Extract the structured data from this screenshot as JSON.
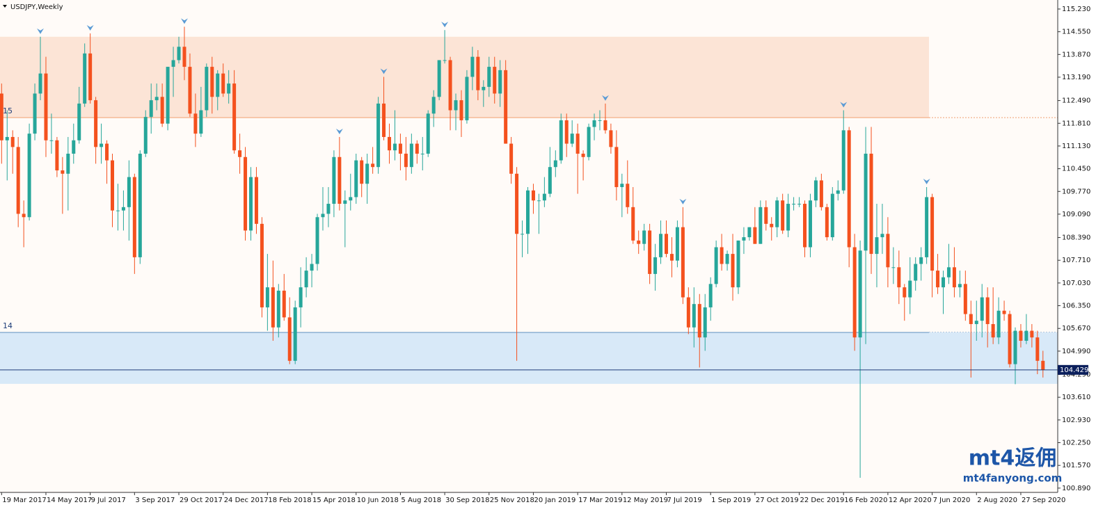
{
  "chart_data": {
    "type": "candlestick",
    "title": "USDJPY,Weekly",
    "bull_color": "#26a69a",
    "bear_color": "#f4511e",
    "ylim": [
      100.72,
      115.5
    ],
    "yticks": [
      {
        "value": 115.23,
        "label": "115.230"
      },
      {
        "value": 114.55,
        "label": "114.550"
      },
      {
        "value": 113.87,
        "label": "113.870"
      },
      {
        "value": 113.19,
        "label": "113.190"
      },
      {
        "value": 112.49,
        "label": "112.490"
      },
      {
        "value": 111.81,
        "label": "111.810"
      },
      {
        "value": 111.13,
        "label": "111.130"
      },
      {
        "value": 110.45,
        "label": "110.450"
      },
      {
        "value": 109.77,
        "label": "109.770"
      },
      {
        "value": 109.09,
        "label": "109.090"
      },
      {
        "value": 108.39,
        "label": "108.390"
      },
      {
        "value": 107.71,
        "label": "107.710"
      },
      {
        "value": 107.03,
        "label": "107.030"
      },
      {
        "value": 106.35,
        "label": "106.350"
      },
      {
        "value": 105.67,
        "label": "105.670"
      },
      {
        "value": 104.99,
        "label": "104.990"
      },
      {
        "value": 104.29,
        "label": "104.290"
      },
      {
        "value": 103.61,
        "label": "103.610"
      },
      {
        "value": 102.93,
        "label": "102.930"
      },
      {
        "value": 102.25,
        "label": "102.250"
      },
      {
        "value": 101.57,
        "label": "101.570"
      },
      {
        "value": 100.89,
        "label": "100.890"
      }
    ],
    "zones": [
      {
        "label": "15",
        "from": 111.98,
        "to": 114.4,
        "color": "#fce4d6",
        "line_color": "#f0a070"
      },
      {
        "label": "14",
        "from": 104.01,
        "to": 105.55,
        "color": "#d8e9f8",
        "line_color": "#5b8fc0"
      }
    ],
    "categories": [
      "19 Mar 2017",
      null,
      null,
      null,
      null,
      null,
      null,
      null,
      "14 May 2017",
      null,
      null,
      null,
      null,
      null,
      null,
      null,
      "9 Jul 2017",
      null,
      null,
      null,
      null,
      null,
      null,
      null,
      "3 Sep 2017",
      null,
      null,
      null,
      null,
      null,
      null,
      null,
      "29 Oct 2017",
      null,
      null,
      null,
      null,
      null,
      null,
      null,
      "24 Dec 2017",
      null,
      null,
      null,
      null,
      null,
      null,
      null,
      "18 Feb 2018",
      null,
      null,
      null,
      null,
      null,
      null,
      null,
      "15 Apr 2018",
      null,
      null,
      null,
      null,
      null,
      null,
      null,
      "10 Jun 2018",
      null,
      null,
      null,
      null,
      null,
      null,
      null,
      "5 Aug 2018",
      null,
      null,
      null,
      null,
      null,
      null,
      null,
      "30 Sep 2018",
      null,
      null,
      null,
      null,
      null,
      null,
      null,
      "25 Nov 2018",
      null,
      null,
      null,
      null,
      null,
      null,
      null,
      "20 Jan 2019",
      null,
      null,
      null,
      null,
      null,
      null,
      null,
      "17 Mar 2019",
      null,
      null,
      null,
      null,
      null,
      null,
      null,
      "12 May 2019",
      null,
      null,
      null,
      null,
      null,
      null,
      null,
      "7 Jul 2019",
      null,
      null,
      null,
      null,
      null,
      null,
      null,
      "1 Sep 2019",
      null,
      null,
      null,
      null,
      null,
      null,
      null,
      "27 Oct 2019",
      null,
      null,
      null,
      null,
      null,
      null,
      null,
      "22 Dec 2019",
      null,
      null,
      null,
      null,
      null,
      null,
      null,
      "16 Feb 2020",
      null,
      null,
      null,
      null,
      null,
      null,
      null,
      "12 Apr 2020",
      null,
      null,
      null,
      null,
      null,
      null,
      null,
      "7 Jun 2020",
      null,
      null,
      null,
      null,
      null,
      null,
      null,
      "2 Aug 2020",
      null,
      null,
      null,
      null,
      null,
      null,
      null,
      "27 Sep 2020",
      null,
      null,
      null,
      null
    ],
    "open": [
      112.7,
      111.3,
      111.4,
      111.1,
      109.1,
      109.0,
      111.5,
      112.7,
      113.3,
      111.3,
      111.3,
      110.4,
      110.3,
      110.9,
      111.3,
      112.4,
      113.9,
      112.5,
      111.1,
      111.2,
      110.7,
      109.2,
      109.2,
      109.3,
      110.2,
      107.8,
      110.9,
      112.0,
      112.5,
      112.6,
      111.8,
      113.5,
      113.7,
      114.1,
      113.5,
      112.1,
      111.5,
      112.2,
      113.5,
      112.6,
      113.3,
      112.7,
      113.0,
      111.0,
      110.8,
      108.6,
      110.2,
      108.8,
      106.3,
      106.9,
      105.7,
      106.8,
      106.0,
      104.7,
      106.3,
      106.9,
      107.4,
      107.6,
      109.0,
      109.1,
      109.4,
      110.8,
      109.4,
      109.5,
      109.6,
      110.7,
      110.0,
      110.6,
      110.5,
      112.4,
      111.4,
      111.0,
      111.2,
      110.9,
      110.5,
      111.2,
      110.9,
      110.9,
      112.1,
      112.6,
      113.7,
      113.7,
      112.2,
      112.5,
      111.9,
      113.2,
      113.8,
      112.8,
      112.9,
      113.5,
      112.7,
      113.4,
      111.2,
      110.3,
      108.5,
      108.5,
      109.8,
      109.5,
      109.5,
      109.7,
      110.5,
      110.7,
      111.9,
      111.2,
      111.5,
      110.9,
      110.8,
      111.7,
      111.9,
      111.9,
      111.6,
      111.1,
      109.9,
      110.0,
      109.3,
      108.3,
      108.2,
      108.6,
      107.3,
      107.8,
      108.5,
      107.9,
      107.7,
      108.7,
      106.6,
      105.7,
      106.4,
      105.4,
      106.3,
      107.0,
      108.1,
      107.6,
      107.9,
      106.9,
      108.3,
      108.4,
      108.7,
      108.2,
      109.3,
      108.8,
      108.7,
      109.5,
      108.6,
      109.4,
      109.4,
      109.4,
      108.1,
      109.5,
      110.1,
      109.3,
      108.4,
      109.7,
      109.8,
      111.6,
      108.1,
      105.4,
      108.0,
      110.9,
      107.9,
      108.4,
      108.5,
      107.5,
      107.5,
      106.9,
      106.6,
      107.1,
      107.6,
      107.8,
      109.6,
      107.4,
      106.9,
      107.2,
      107.5,
      106.9,
      107.0,
      106.1,
      105.8,
      105.9,
      106.6,
      105.8,
      105.4,
      106.2,
      106.1,
      104.6,
      105.6,
      105.3,
      105.6,
      105.4,
      104.7
    ],
    "high": [
      113.0,
      112.2,
      111.6,
      111.4,
      109.5,
      111.8,
      113.0,
      114.4,
      113.8,
      112.1,
      111.4,
      110.8,
      111.4,
      111.8,
      112.9,
      114.2,
      114.5,
      112.6,
      111.8,
      111.3,
      110.9,
      110.0,
      109.8,
      110.7,
      110.3,
      111.0,
      112.2,
      113.0,
      113.0,
      113.0,
      113.5,
      114.1,
      114.4,
      114.7,
      113.9,
      112.7,
      112.9,
      113.6,
      113.8,
      113.4,
      113.6,
      113.4,
      113.4,
      111.5,
      111.1,
      110.5,
      110.5,
      109.0,
      107.9,
      107.7,
      107.0,
      107.3,
      106.6,
      106.5,
      107.5,
      107.8,
      107.9,
      109.1,
      109.9,
      109.9,
      111.0,
      111.4,
      109.8,
      110.3,
      110.9,
      110.8,
      110.9,
      111.1,
      112.6,
      113.2,
      111.8,
      112.2,
      111.5,
      111.4,
      111.5,
      111.3,
      111.4,
      112.2,
      112.8,
      113.7,
      114.6,
      113.8,
      112.7,
      112.8,
      113.4,
      114.1,
      114.0,
      113.1,
      113.8,
      113.8,
      113.7,
      113.7,
      111.4,
      110.5,
      108.9,
      109.9,
      110.0,
      109.7,
      110.2,
      111.1,
      111.0,
      112.1,
      112.1,
      111.9,
      111.8,
      111.0,
      111.8,
      112.1,
      112.2,
      112.4,
      111.8,
      111.6,
      110.3,
      110.7,
      109.9,
      108.6,
      108.8,
      108.8,
      108.2,
      108.9,
      108.9,
      108.4,
      108.9,
      109.3,
      106.9,
      106.9,
      106.7,
      106.7,
      107.2,
      108.3,
      108.5,
      108.0,
      108.5,
      108.3,
      108.7,
      108.7,
      109.3,
      109.5,
      109.5,
      109.0,
      109.6,
      109.7,
      109.7,
      109.6,
      109.6,
      109.5,
      109.7,
      110.2,
      110.3,
      109.4,
      109.9,
      110.1,
      112.2,
      111.7,
      108.5,
      108.3,
      111.7,
      111.7,
      109.4,
      109.4,
      109.0,
      108.1,
      108.0,
      107.0,
      107.8,
      107.8,
      108.1,
      109.9,
      109.7,
      107.9,
      107.4,
      108.2,
      108.1,
      107.4,
      107.4,
      106.5,
      106.5,
      107.0,
      106.9,
      106.9,
      106.6,
      106.5,
      106.2,
      105.7,
      105.8,
      106.1,
      105.8,
      105.6,
      105.0
    ],
    "low": [
      110.6,
      110.1,
      110.3,
      108.7,
      108.1,
      108.9,
      111.3,
      112.5,
      110.8,
      110.9,
      110.2,
      109.1,
      109.2,
      110.6,
      111.2,
      112.3,
      112.4,
      110.6,
      110.6,
      110.0,
      108.7,
      108.6,
      108.6,
      108.3,
      107.3,
      107.6,
      110.8,
      111.5,
      112.2,
      111.7,
      111.6,
      112.6,
      113.6,
      113.1,
      112.0,
      111.1,
      111.4,
      112.0,
      112.1,
      112.2,
      112.6,
      112.4,
      110.9,
      110.3,
      108.3,
      108.3,
      108.5,
      106.0,
      105.6,
      105.3,
      105.4,
      105.9,
      104.6,
      104.6,
      105.7,
      106.6,
      106.9,
      107.4,
      108.6,
      108.7,
      109.0,
      109.2,
      108.1,
      109.2,
      109.4,
      109.6,
      109.4,
      110.3,
      110.3,
      111.3,
      110.6,
      110.7,
      110.4,
      110.1,
      110.3,
      110.6,
      110.4,
      110.8,
      111.7,
      112.5,
      113.6,
      111.6,
      111.6,
      111.4,
      111.8,
      112.8,
      112.5,
      112.3,
      112.6,
      112.4,
      112.3,
      111.2,
      110.0,
      104.7,
      107.8,
      107.9,
      109.1,
      108.5,
      109.3,
      109.6,
      110.2,
      110.6,
      110.8,
      111.1,
      109.7,
      110.1,
      110.7,
      111.3,
      111.6,
      111.5,
      110.9,
      109.5,
      109.0,
      109.1,
      108.2,
      107.9,
      108.0,
      107.0,
      106.8,
      107.6,
      107.8,
      107.2,
      107.5,
      106.4,
      105.5,
      105.1,
      104.5,
      105.0,
      105.9,
      106.9,
      107.4,
      107.4,
      106.5,
      106.7,
      107.9,
      108.3,
      108.2,
      108.2,
      108.6,
      108.3,
      108.4,
      108.5,
      108.4,
      109.2,
      109.3,
      107.8,
      107.8,
      109.3,
      109.2,
      108.3,
      108.3,
      109.5,
      109.7,
      107.5,
      105.0,
      101.2,
      105.2,
      107.3,
      106.9,
      107.9,
      106.9,
      107.0,
      106.4,
      105.9,
      106.1,
      106.8,
      107.1,
      107.6,
      106.6,
      106.7,
      106.1,
      107.0,
      106.6,
      106.6,
      105.9,
      104.2,
      105.3,
      105.4,
      105.1,
      105.2,
      105.2,
      105.9,
      104.5,
      104.0,
      105.1,
      105.2,
      105.1,
      104.3,
      104.2
    ],
    "close": [
      111.3,
      111.4,
      111.1,
      109.1,
      109.0,
      111.5,
      112.7,
      113.3,
      111.3,
      111.3,
      110.4,
      110.3,
      110.9,
      111.3,
      112.4,
      113.9,
      112.5,
      111.1,
      111.2,
      110.7,
      109.2,
      109.2,
      109.3,
      110.2,
      107.8,
      110.9,
      112.0,
      112.5,
      112.6,
      111.8,
      113.5,
      113.7,
      114.1,
      113.5,
      112.1,
      111.5,
      112.2,
      113.5,
      112.6,
      113.3,
      112.7,
      113.0,
      111.0,
      110.8,
      108.6,
      110.2,
      108.8,
      106.3,
      106.9,
      105.7,
      106.8,
      106.0,
      104.7,
      106.3,
      106.9,
      107.4,
      107.6,
      109.0,
      109.1,
      109.4,
      110.8,
      109.4,
      109.5,
      109.6,
      110.7,
      110.0,
      110.6,
      110.5,
      112.4,
      111.4,
      111.0,
      111.2,
      110.9,
      110.5,
      111.2,
      110.9,
      110.9,
      112.1,
      112.6,
      113.7,
      113.7,
      112.2,
      112.5,
      111.9,
      113.2,
      113.8,
      112.8,
      112.9,
      113.5,
      112.7,
      113.4,
      111.2,
      110.3,
      108.5,
      108.5,
      109.8,
      109.5,
      109.5,
      109.7,
      110.5,
      110.7,
      111.9,
      111.2,
      111.5,
      110.9,
      110.8,
      111.7,
      111.9,
      111.9,
      111.6,
      111.1,
      109.9,
      110.0,
      109.3,
      108.3,
      108.2,
      108.6,
      107.3,
      107.8,
      108.5,
      107.9,
      107.7,
      108.7,
      106.6,
      105.7,
      106.4,
      105.4,
      106.3,
      107.0,
      108.1,
      107.6,
      107.9,
      106.9,
      108.3,
      108.4,
      108.7,
      108.2,
      109.3,
      108.8,
      108.7,
      109.5,
      108.6,
      109.4,
      109.4,
      109.4,
      108.1,
      109.5,
      110.1,
      109.3,
      108.4,
      109.7,
      109.8,
      111.6,
      108.1,
      105.4,
      108.0,
      110.9,
      107.9,
      108.4,
      108.5,
      107.5,
      107.5,
      106.9,
      106.6,
      107.1,
      107.6,
      107.8,
      109.6,
      107.4,
      106.9,
      107.2,
      107.5,
      106.9,
      107.0,
      106.1,
      105.8,
      105.9,
      106.6,
      105.8,
      105.4,
      106.2,
      106.1,
      104.6,
      105.6,
      105.3,
      105.6,
      105.4,
      104.7,
      104.429
    ],
    "watermark": {
      "brand": "mt4返佣",
      "url": "mt4fanyong.com"
    }
  }
}
